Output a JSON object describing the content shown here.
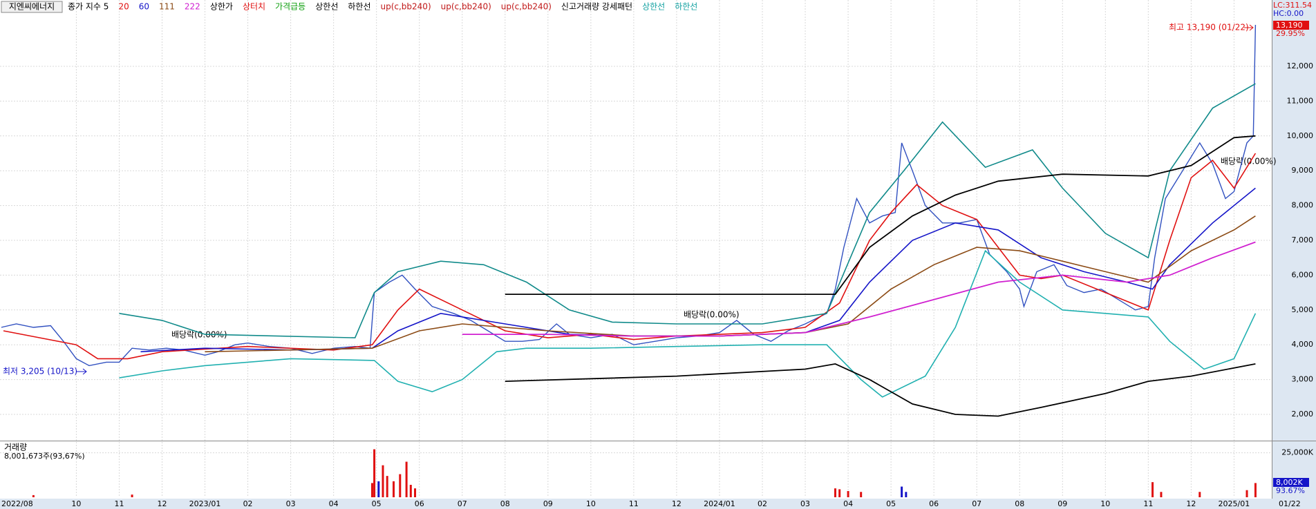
{
  "chart_data": [
    {
      "type": "line",
      "title": "지엔씨에너지",
      "header": [
        {
          "text": "종가 지수 5",
          "color": "#000000"
        },
        {
          "text": "20",
          "color": "#e01010"
        },
        {
          "text": "60",
          "color": "#1414c8"
        },
        {
          "text": "111",
          "color": "#8b4a14"
        },
        {
          "text": "222",
          "color": "#d020d0"
        },
        {
          "text": "상한가",
          "color": "#000000"
        },
        {
          "text": "상터치",
          "color": "#e01010"
        },
        {
          "text": "가격급등",
          "color": "#10a010"
        },
        {
          "text": "상한선",
          "color": "#000000"
        },
        {
          "text": "하한선",
          "color": "#000000"
        },
        {
          "text": "up(c,bb240)",
          "color": "#c01818"
        },
        {
          "text": "up(c,bb240)",
          "color": "#c01818"
        },
        {
          "text": "up(c,bb240)",
          "color": "#c01818"
        },
        {
          "text": "신고거래량 강세패턴",
          "color": "#000000"
        },
        {
          "text": "상한선",
          "color": "#10a0a0"
        },
        {
          "text": "하한선",
          "color": "#10a0a0"
        }
      ],
      "lc_label": "LC:311.54",
      "hc_label": "HC:0.00",
      "last_price_label": "13,190",
      "change_label": "29.95%",
      "high_annotation": "최고 13,190 (01/22)",
      "low_annotation": "최저 3,205 (10/13)",
      "dividend_annotations": [
        "배당락(0.00%)",
        "배당락(0.00%)",
        "배당락(0.00%)"
      ],
      "xlim": [
        0.22,
        29.88
      ],
      "ylim": [
        1266,
        13905
      ],
      "xticks": [
        {
          "value": 0.22,
          "label": "2022/08"
        },
        {
          "value": 2,
          "label": "10"
        },
        {
          "value": 3,
          "label": "11"
        },
        {
          "value": 4,
          "label": "12"
        },
        {
          "value": 5,
          "label": "2023/01"
        },
        {
          "value": 6,
          "label": "02"
        },
        {
          "value": 7,
          "label": "03"
        },
        {
          "value": 8,
          "label": "04"
        },
        {
          "value": 9,
          "label": "05"
        },
        {
          "value": 10,
          "label": "06"
        },
        {
          "value": 11,
          "label": "07"
        },
        {
          "value": 12,
          "label": "08"
        },
        {
          "value": 13,
          "label": "09"
        },
        {
          "value": 14,
          "label": "10"
        },
        {
          "value": 15,
          "label": "11"
        },
        {
          "value": 16,
          "label": "12"
        },
        {
          "value": 17,
          "label": "2024/01"
        },
        {
          "value": 18,
          "label": "02"
        },
        {
          "value": 19,
          "label": "03"
        },
        {
          "value": 20,
          "label": "04"
        },
        {
          "value": 21,
          "label": "05"
        },
        {
          "value": 22,
          "label": "06"
        },
        {
          "value": 23,
          "label": "07"
        },
        {
          "value": 24,
          "label": "08"
        },
        {
          "value": 25,
          "label": "09"
        },
        {
          "value": 26,
          "label": "10"
        },
        {
          "value": 27,
          "label": "11"
        },
        {
          "value": 28,
          "label": "12"
        },
        {
          "value": 29,
          "label": "2025/01"
        }
      ],
      "last_date": "01/22",
      "yticks": [
        {
          "value": 2000,
          "label": "2,000"
        },
        {
          "value": 3000,
          "label": "3,000"
        },
        {
          "value": 4000,
          "label": "4,000"
        },
        {
          "value": 5000,
          "label": "5,000"
        },
        {
          "value": 6000,
          "label": "6,000"
        },
        {
          "value": 7000,
          "label": "7,000"
        },
        {
          "value": 8000,
          "label": "8,000"
        },
        {
          "value": 9000,
          "label": "9,000"
        },
        {
          "value": 10000,
          "label": "10,000"
        },
        {
          "value": 11000,
          "label": "11,000"
        },
        {
          "value": 12000,
          "label": "12,000"
        }
      ],
      "grid": true,
      "series": [
        {
          "color": "#3050c0",
          "width": 1.4,
          "x": [
            0.25,
            0.6,
            1.0,
            1.4,
            1.7,
            2.0,
            2.3,
            2.7,
            3.0,
            3.3,
            3.7,
            4.1,
            4.5,
            5.0,
            5.3,
            5.7,
            6.0,
            6.5,
            7.0,
            7.5,
            8.0,
            8.5,
            8.85,
            8.95,
            9.3,
            9.6,
            9.9,
            10.3,
            10.8,
            11.2,
            11.6,
            12.0,
            12.4,
            12.8,
            13.2,
            13.5,
            14.0,
            14.5,
            15.0,
            15.5,
            16.0,
            16.5,
            17.0,
            17.4,
            17.8,
            18.2,
            18.6,
            19.0,
            19.5,
            19.7,
            19.9,
            20.2,
            20.5,
            20.8,
            21.1,
            21.25,
            21.5,
            21.8,
            22.2,
            22.6,
            23.0,
            23.3,
            23.7,
            24.0,
            24.1,
            24.4,
            24.8,
            25.1,
            25.5,
            25.9,
            26.3,
            26.7,
            27.0,
            27.15,
            27.4,
            27.8,
            28.2,
            28.5,
            28.8,
            29.0,
            29.3,
            29.45,
            29.5
          ],
          "values": [
            4500,
            4600,
            4500,
            4550,
            4100,
            3600,
            3400,
            3500,
            3500,
            3900,
            3850,
            3900,
            3850,
            3700,
            3800,
            4000,
            4050,
            3950,
            3900,
            3750,
            3900,
            3950,
            3900,
            5500,
            5800,
            6000,
            5600,
            5100,
            4900,
            4700,
            4400,
            4100,
            4100,
            4150,
            4600,
            4300,
            4200,
            4300,
            4000,
            4100,
            4200,
            4250,
            4350,
            4700,
            4300,
            4100,
            4400,
            4600,
            4900,
            5600,
            6800,
            8200,
            7500,
            7700,
            7800,
            9800,
            9000,
            8000,
            7500,
            7500,
            7600,
            6600,
            6100,
            5600,
            5100,
            6100,
            6300,
            5700,
            5500,
            5600,
            5300,
            5000,
            5100,
            6500,
            8200,
            9000,
            9800,
            9200,
            8200,
            8400,
            9800,
            10000,
            13190
          ]
        },
        {
          "name": "20",
          "color": "#e01010",
          "width": 1.6,
          "x": [
            0.3,
            2.0,
            2.5,
            3.2,
            4,
            6,
            8,
            8.9,
            9.5,
            10.0,
            11,
            12,
            13,
            14,
            15,
            16,
            17,
            18,
            19,
            19.8,
            20.5,
            21,
            21.6,
            22.2,
            23,
            23.5,
            24,
            24.5,
            25,
            26,
            27,
            27.5,
            28,
            28.5,
            29,
            29.5
          ],
          "values": [
            4400,
            4000,
            3600,
            3600,
            3800,
            3950,
            3850,
            4000,
            5000,
            5600,
            5000,
            4400,
            4200,
            4300,
            4150,
            4250,
            4300,
            4350,
            4500,
            5200,
            7000,
            7800,
            8600,
            8000,
            7600,
            6800,
            6000,
            5900,
            6000,
            5500,
            5000,
            7000,
            8800,
            9300,
            8500,
            9500
          ]
        },
        {
          "name": "60",
          "color": "#1414c8",
          "width": 1.6,
          "x": [
            3.5,
            5,
            7,
            8.9,
            9.5,
            10.5,
            12,
            13.5,
            15,
            17,
            19,
            19.8,
            20.5,
            21.5,
            22.5,
            23.5,
            24.5,
            25.5,
            26.5,
            27.1,
            27.5,
            28.5,
            29.5
          ],
          "values": [
            3800,
            3900,
            3850,
            3900,
            4400,
            4900,
            4600,
            4300,
            4250,
            4250,
            4350,
            4700,
            5800,
            7000,
            7500,
            7300,
            6500,
            6100,
            5800,
            5600,
            6300,
            7500,
            8500
          ]
        },
        {
          "name": "111",
          "color": "#8b4a14",
          "width": 1.6,
          "x": [
            5,
            8.9,
            10,
            11,
            13,
            15,
            17,
            19,
            20,
            21,
            22,
            23,
            24,
            25,
            26,
            27,
            28,
            29,
            29.5
          ],
          "values": [
            3800,
            3900,
            4400,
            4600,
            4400,
            4250,
            4250,
            4350,
            4600,
            5600,
            6300,
            6800,
            6700,
            6400,
            6100,
            5800,
            6700,
            7300,
            7700
          ]
        },
        {
          "name": "222",
          "color": "#d020d0",
          "width": 1.8,
          "x": [
            11,
            13,
            15,
            17,
            19,
            20.5,
            22,
            23.5,
            25,
            26.5,
            27.5,
            28.5,
            29.5
          ],
          "values": [
            4300,
            4300,
            4250,
            4250,
            4350,
            4800,
            5300,
            5800,
            6000,
            5800,
            6000,
            6500,
            6950
          ]
        },
        {
          "name": "상한선",
          "color": "#108a8a",
          "width": 1.6,
          "x": [
            3,
            4,
            5,
            8.5,
            8.95,
            9.5,
            10.5,
            11.5,
            12.5,
            13.5,
            14.5,
            16,
            18,
            19.5,
            20.5,
            21.3,
            22.2,
            23.2,
            24.3,
            25,
            26,
            27,
            27.5,
            28.5,
            29.5
          ],
          "values": [
            4900,
            4700,
            4300,
            4200,
            5500,
            6100,
            6400,
            6300,
            5800,
            5000,
            4650,
            4600,
            4600,
            4900,
            7800,
            9000,
            10400,
            9100,
            9600,
            8500,
            7200,
            6500,
            9000,
            10800,
            11500
          ]
        },
        {
          "name": "하한선",
          "color": "#20b0b0",
          "width": 1.6,
          "x": [
            3,
            4,
            5,
            7,
            8.95,
            9.5,
            10.3,
            11,
            11.8,
            12.5,
            14,
            16,
            18,
            19.5,
            20.3,
            20.8,
            21.8,
            22.5,
            23.2,
            24,
            25,
            26,
            27,
            27.5,
            28.3,
            29,
            29.5
          ],
          "values": [
            3050,
            3250,
            3400,
            3600,
            3550,
            2950,
            2650,
            3000,
            3800,
            3900,
            3900,
            3950,
            4000,
            4000,
            3000,
            2500,
            3100,
            4500,
            6700,
            5800,
            5000,
            4900,
            4800,
            4100,
            3300,
            3600,
            4900
          ]
        },
        {
          "color": "#000000",
          "width": 1.8,
          "x": [
            12,
            19.7,
            20.5,
            21.5,
            22.5,
            23.5,
            25,
            27,
            28,
            29,
            29.5
          ],
          "values": [
            5450,
            5450,
            6800,
            7700,
            8300,
            8700,
            8900,
            8850,
            9150,
            9950,
            10000
          ]
        },
        {
          "color": "#000000",
          "width": 1.8,
          "x": [
            12,
            16,
            19,
            19.7,
            20.5,
            21.5,
            22.5,
            23.5,
            24.5,
            26,
            27,
            28,
            29.5
          ],
          "values": [
            2950,
            3100,
            3300,
            3450,
            3000,
            2300,
            2000,
            1950,
            2200,
            2600,
            2950,
            3100,
            3450
          ]
        }
      ]
    },
    {
      "type": "bar",
      "title": "거래량",
      "subtitle": "8,001,673주(93,67%)",
      "last_value_label": "8,002K",
      "last_pct_label": "93.67%",
      "ylim": [
        0,
        30700
      ],
      "yticks": [
        {
          "value": 25000,
          "label": "25,000K"
        }
      ],
      "x": [
        1.0,
        3.3,
        8.9,
        8.95,
        9.05,
        9.15,
        9.25,
        9.4,
        9.55,
        9.7,
        9.8,
        9.9,
        19.7,
        19.8,
        20.0,
        20.3,
        21.25,
        21.35,
        27.1,
        27.3,
        28.2,
        29.3,
        29.5
      ],
      "values": [
        1200,
        1500,
        8000,
        27000,
        9000,
        18000,
        12000,
        9000,
        13000,
        20000,
        7000,
        5000,
        5000,
        4500,
        3500,
        3000,
        6000,
        3000,
        8500,
        3000,
        3000,
        4000,
        8002
      ],
      "colors": [
        "#e01010",
        "#e01010",
        "#e01010",
        "#e01010",
        "#1414c8",
        "#e01010",
        "#e01010",
        "#e01010",
        "#e01010",
        "#e01010",
        "#e01010",
        "#e01010",
        "#e01010",
        "#e01010",
        "#e01010",
        "#e01010",
        "#1414c8",
        "#1414c8",
        "#e01010",
        "#e01010",
        "#e01010",
        "#e01010",
        "#e01010"
      ]
    }
  ]
}
